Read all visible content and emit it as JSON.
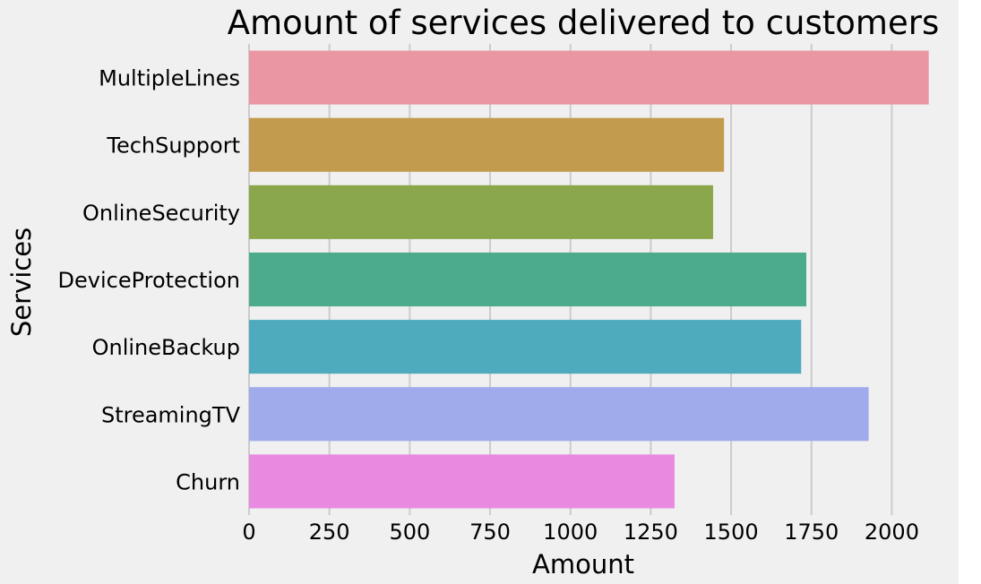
{
  "chart_data": {
    "type": "bar",
    "orientation": "horizontal",
    "title": "Amount of services delivered to customers",
    "xlabel": "Amount",
    "ylabel": "Services",
    "categories": [
      "MultipleLines",
      "TechSupport",
      "OnlineSecurity",
      "DeviceProtection",
      "OnlineBackup",
      "StreamingTV",
      "Churn"
    ],
    "values": [
      2115,
      1478,
      1444,
      1734,
      1718,
      1928,
      1324
    ],
    "colors": [
      "#ea96a3",
      "#c39b4e",
      "#8aa84b",
      "#4bab8c",
      "#4eabbd",
      "#a0abeb",
      "#e98ae1"
    ],
    "xticks": [
      0,
      250,
      500,
      750,
      1000,
      1250,
      1500,
      1750,
      2000
    ],
    "xlim": [
      0,
      2180
    ],
    "grid": true,
    "background": "#f0f0f0"
  }
}
